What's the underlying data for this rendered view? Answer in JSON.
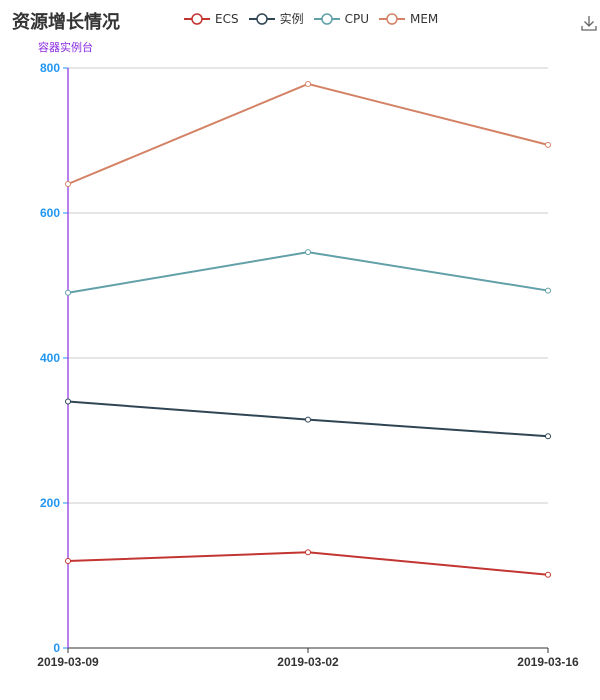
{
  "header": {
    "title": "资源增长情况",
    "download_icon": "download-icon"
  },
  "chart_data": {
    "type": "line",
    "title": "资源增长情况",
    "ylabel": "容器实例台",
    "xlabel": "",
    "x": [
      "2019-03-09",
      "2019-03-02",
      "2019-03-16"
    ],
    "ylim": [
      0,
      800
    ],
    "yticks": [
      0,
      200,
      400,
      600,
      800
    ],
    "grid": true,
    "legend_position": "top",
    "series": [
      {
        "name": "ECS",
        "color": "#c23531",
        "values": [
          120,
          132,
          101
        ]
      },
      {
        "name": "实例",
        "color": "#2f4554",
        "values": [
          340,
          315,
          292
        ]
      },
      {
        "name": "CPU",
        "color": "#61a0a8",
        "values": [
          490,
          546,
          493
        ]
      },
      {
        "name": "MEM",
        "color": "#d48265",
        "values": [
          640,
          778,
          694
        ]
      }
    ]
  }
}
